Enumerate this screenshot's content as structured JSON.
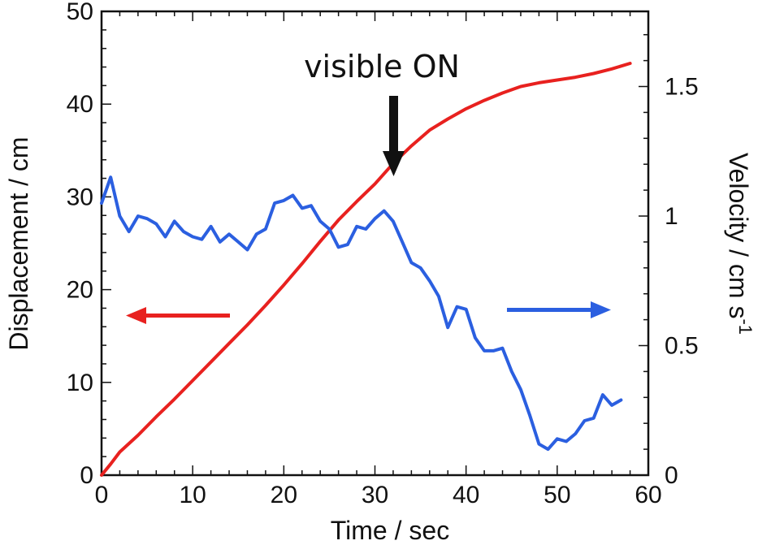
{
  "chart_data": {
    "type": "line",
    "xlabel": "Time / sec",
    "ylabel_left": "Displacement / cm",
    "ylabel_right": "Velocity / cm s",
    "ylabel_right_sup": "-1",
    "xlim": [
      0,
      60
    ],
    "ylim_left": [
      0,
      50
    ],
    "ylim_right": [
      0,
      1.79
    ],
    "x_ticks": [
      0,
      10,
      20,
      30,
      40,
      50,
      60
    ],
    "x_tick_labels": [
      "0",
      "10",
      "20",
      "30",
      "40",
      "50",
      "60"
    ],
    "y_left_ticks": [
      0,
      10,
      20,
      30,
      40,
      50
    ],
    "y_left_tick_labels": [
      "0",
      "10",
      "20",
      "30",
      "40",
      "50"
    ],
    "y_right_ticks": [
      0,
      0.5,
      1,
      1.5
    ],
    "y_right_tick_labels": [
      "0",
      "0.5",
      "1",
      "1.5"
    ],
    "grid": false,
    "series": [
      {
        "name": "Displacement",
        "axis": "left",
        "color": "#e8211f",
        "x": [
          0,
          1,
          2,
          4,
          6,
          8,
          10,
          12,
          14,
          16,
          18,
          20,
          22,
          24,
          26,
          28,
          30,
          32,
          34,
          36,
          38,
          40,
          42,
          44,
          46,
          48,
          50,
          52,
          54,
          56,
          58
        ],
        "y": [
          0,
          1.2,
          2.5,
          4.3,
          6.3,
          8.2,
          10.2,
          12.2,
          14.2,
          16.2,
          18.3,
          20.5,
          22.8,
          25.2,
          27.5,
          29.5,
          31.4,
          33.6,
          35.5,
          37.2,
          38.4,
          39.5,
          40.4,
          41.2,
          41.9,
          42.3,
          42.6,
          42.9,
          43.3,
          43.8,
          44.4
        ]
      },
      {
        "name": "Velocity",
        "axis": "right",
        "color": "#2b5fe0",
        "x": [
          0,
          1,
          2,
          3,
          4,
          5,
          6,
          7,
          8,
          9,
          10,
          11,
          12,
          13,
          14,
          15,
          16,
          17,
          18,
          19,
          20,
          21,
          22,
          23,
          24,
          25,
          26,
          27,
          28,
          29,
          30,
          31,
          32,
          33,
          34,
          35,
          36,
          37,
          38,
          39,
          40,
          41,
          42,
          43,
          44,
          45,
          46,
          47,
          48,
          49,
          50,
          51,
          52,
          53,
          54,
          55,
          56,
          57
        ],
        "y": [
          1.05,
          1.15,
          1.0,
          0.94,
          1.0,
          0.99,
          0.97,
          0.92,
          0.98,
          0.94,
          0.92,
          0.91,
          0.96,
          0.9,
          0.93,
          0.9,
          0.87,
          0.93,
          0.95,
          1.05,
          1.06,
          1.08,
          1.03,
          1.04,
          0.98,
          0.95,
          0.88,
          0.89,
          0.96,
          0.95,
          0.99,
          1.02,
          0.98,
          0.9,
          0.82,
          0.8,
          0.75,
          0.69,
          0.57,
          0.65,
          0.64,
          0.53,
          0.48,
          0.48,
          0.49,
          0.4,
          0.33,
          0.23,
          0.12,
          0.1,
          0.14,
          0.13,
          0.16,
          0.21,
          0.22,
          0.31,
          0.27,
          0.29
        ]
      }
    ],
    "annotations": {
      "visible_on_label": "visible ON",
      "visible_on_time": 32,
      "arrow_left_color": "#e8211f",
      "arrow_right_color": "#2b5fe0",
      "arrow_black_color": "#111111"
    }
  }
}
